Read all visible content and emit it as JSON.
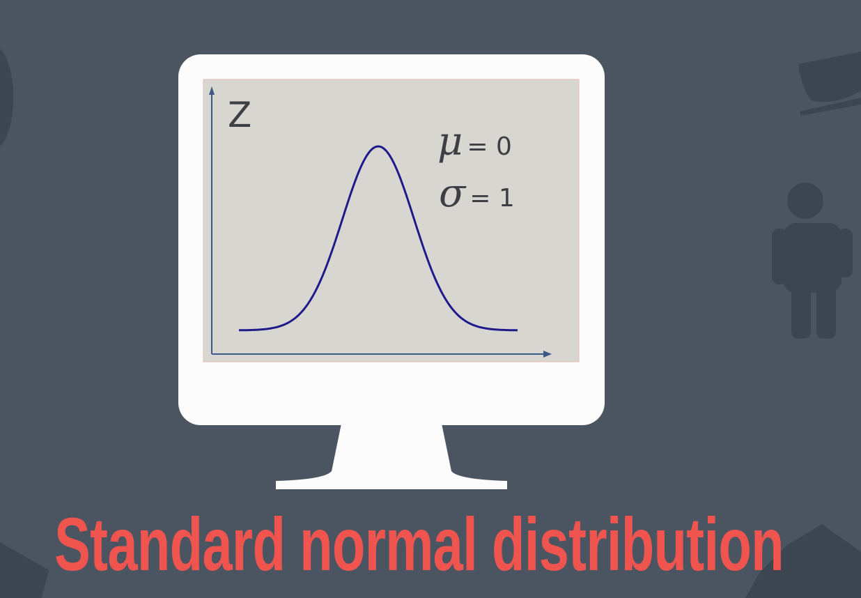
{
  "diagram": {
    "y_axis_label": "Z",
    "parameters": [
      {
        "symbol": "μ",
        "rest": "= 0"
      },
      {
        "symbol": "σ",
        "rest": "= 1"
      }
    ],
    "curve": "normal",
    "mean": 0,
    "std_dev": 1
  },
  "title": "Standard normal distribution",
  "colors": {
    "background": "#4a5561",
    "title": "#f0544f",
    "curve": "#1e1a8c",
    "screen": "#d8d6d1",
    "bezel": "#fcfcfc"
  },
  "icons": [
    "coffee-cup-icon",
    "person-icon",
    "pie-chart-icon",
    "camera-icon",
    "desk-icon",
    "monitor-icon"
  ]
}
